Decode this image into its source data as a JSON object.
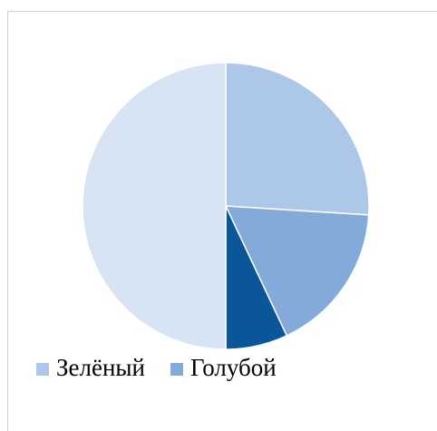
{
  "chart_data": {
    "type": "pie",
    "categories": [
      "Зелёный",
      "Голубой",
      null,
      null
    ],
    "values": [
      26,
      17,
      7,
      50
    ],
    "colors": [
      "#adc7e8",
      "#84aad9",
      "#0b5599",
      "#d7e4f4"
    ],
    "legend": "bottom"
  }
}
